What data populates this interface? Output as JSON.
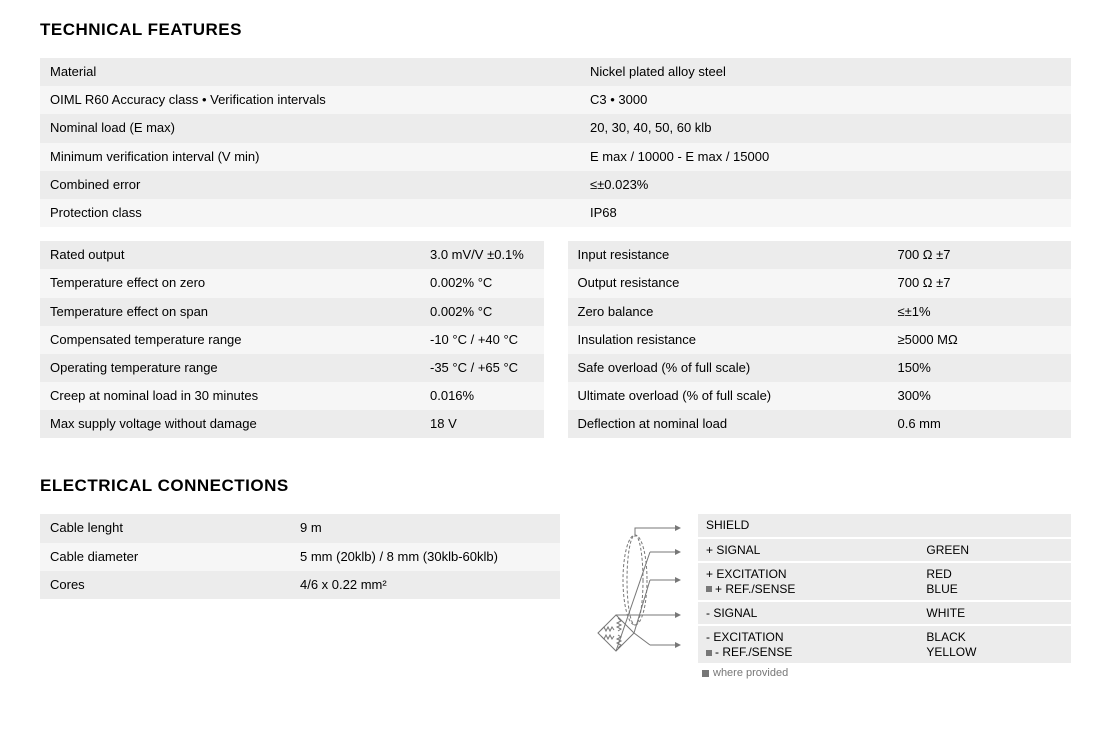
{
  "sections": {
    "tech_title": "TECHNICAL FEATURES",
    "elec_title": "ELECTRICAL CONNECTIONS"
  },
  "top_table": [
    {
      "label": "Material",
      "value": "Nickel plated alloy steel"
    },
    {
      "label": "OIML R60 Accuracy class • Verification intervals",
      "value": "C3 • 3000"
    },
    {
      "label": "Nominal load (E max)",
      "value": "20, 30, 40, 50, 60 klb"
    },
    {
      "label": "Minimum verification interval (V min)",
      "value": "E max / 10000 - E max / 15000"
    },
    {
      "label": "Combined error",
      "value": "≤±0.023%"
    },
    {
      "label": "Protection class",
      "value": "IP68"
    }
  ],
  "left_table": [
    {
      "label": "Rated output",
      "value": "3.0 mV/V ±0.1%"
    },
    {
      "label": "Temperature effect on zero",
      "value": "0.002% °C"
    },
    {
      "label": "Temperature effect on span",
      "value": "0.002% °C"
    },
    {
      "label": "Compensated temperature range",
      "value": "-10 °C / +40 °C"
    },
    {
      "label": "Operating temperature range",
      "value": "-35 °C / +65 °C"
    },
    {
      "label": "Creep at nominal load in 30 minutes",
      "value": "0.016%"
    },
    {
      "label": "Max supply voltage without damage",
      "value": "18 V"
    }
  ],
  "right_table": [
    {
      "label": "Input resistance",
      "value": "700 Ω ±7"
    },
    {
      "label": "Output resistance",
      "value": "700 Ω ±7"
    },
    {
      "label": "Zero balance",
      "value": "≤±1%"
    },
    {
      "label": "Insulation resistance",
      "value": "≥5000 MΩ"
    },
    {
      "label": "Safe overload (% of full scale)",
      "value": "150%"
    },
    {
      "label": "Ultimate overload (% of full scale)",
      "value": "300%"
    },
    {
      "label": "Deflection at nominal load",
      "value": "0.6 mm"
    }
  ],
  "cable_table": [
    {
      "label": "Cable lenght",
      "value": "9 m"
    },
    {
      "label": "Cable diameter",
      "value": "5 mm (20klb)   /   8 mm (30klb-60klb)"
    },
    {
      "label": "Cores",
      "value": "4/6 x 0.22 mm²"
    }
  ],
  "connections": [
    {
      "name": "SHIELD",
      "color": "",
      "marker": false
    },
    {
      "name": "+ SIGNAL",
      "color": "GREEN",
      "marker": false
    },
    {
      "name": "+ EXCITATION\n+ REF./SENSE",
      "color": "RED\nBLUE",
      "marker": true
    },
    {
      "name": "- SIGNAL",
      "color": "WHITE",
      "marker": false
    },
    {
      "name": "- EXCITATION\n- REF./SENSE",
      "color": "BLACK\nYELLOW",
      "marker": true
    }
  ],
  "legend": "where provided",
  "colors": {
    "row_odd": "#ececec",
    "row_even": "#f6f6f6",
    "text": "#000000",
    "legend": "#777777",
    "diagram_stroke": "#777777"
  }
}
